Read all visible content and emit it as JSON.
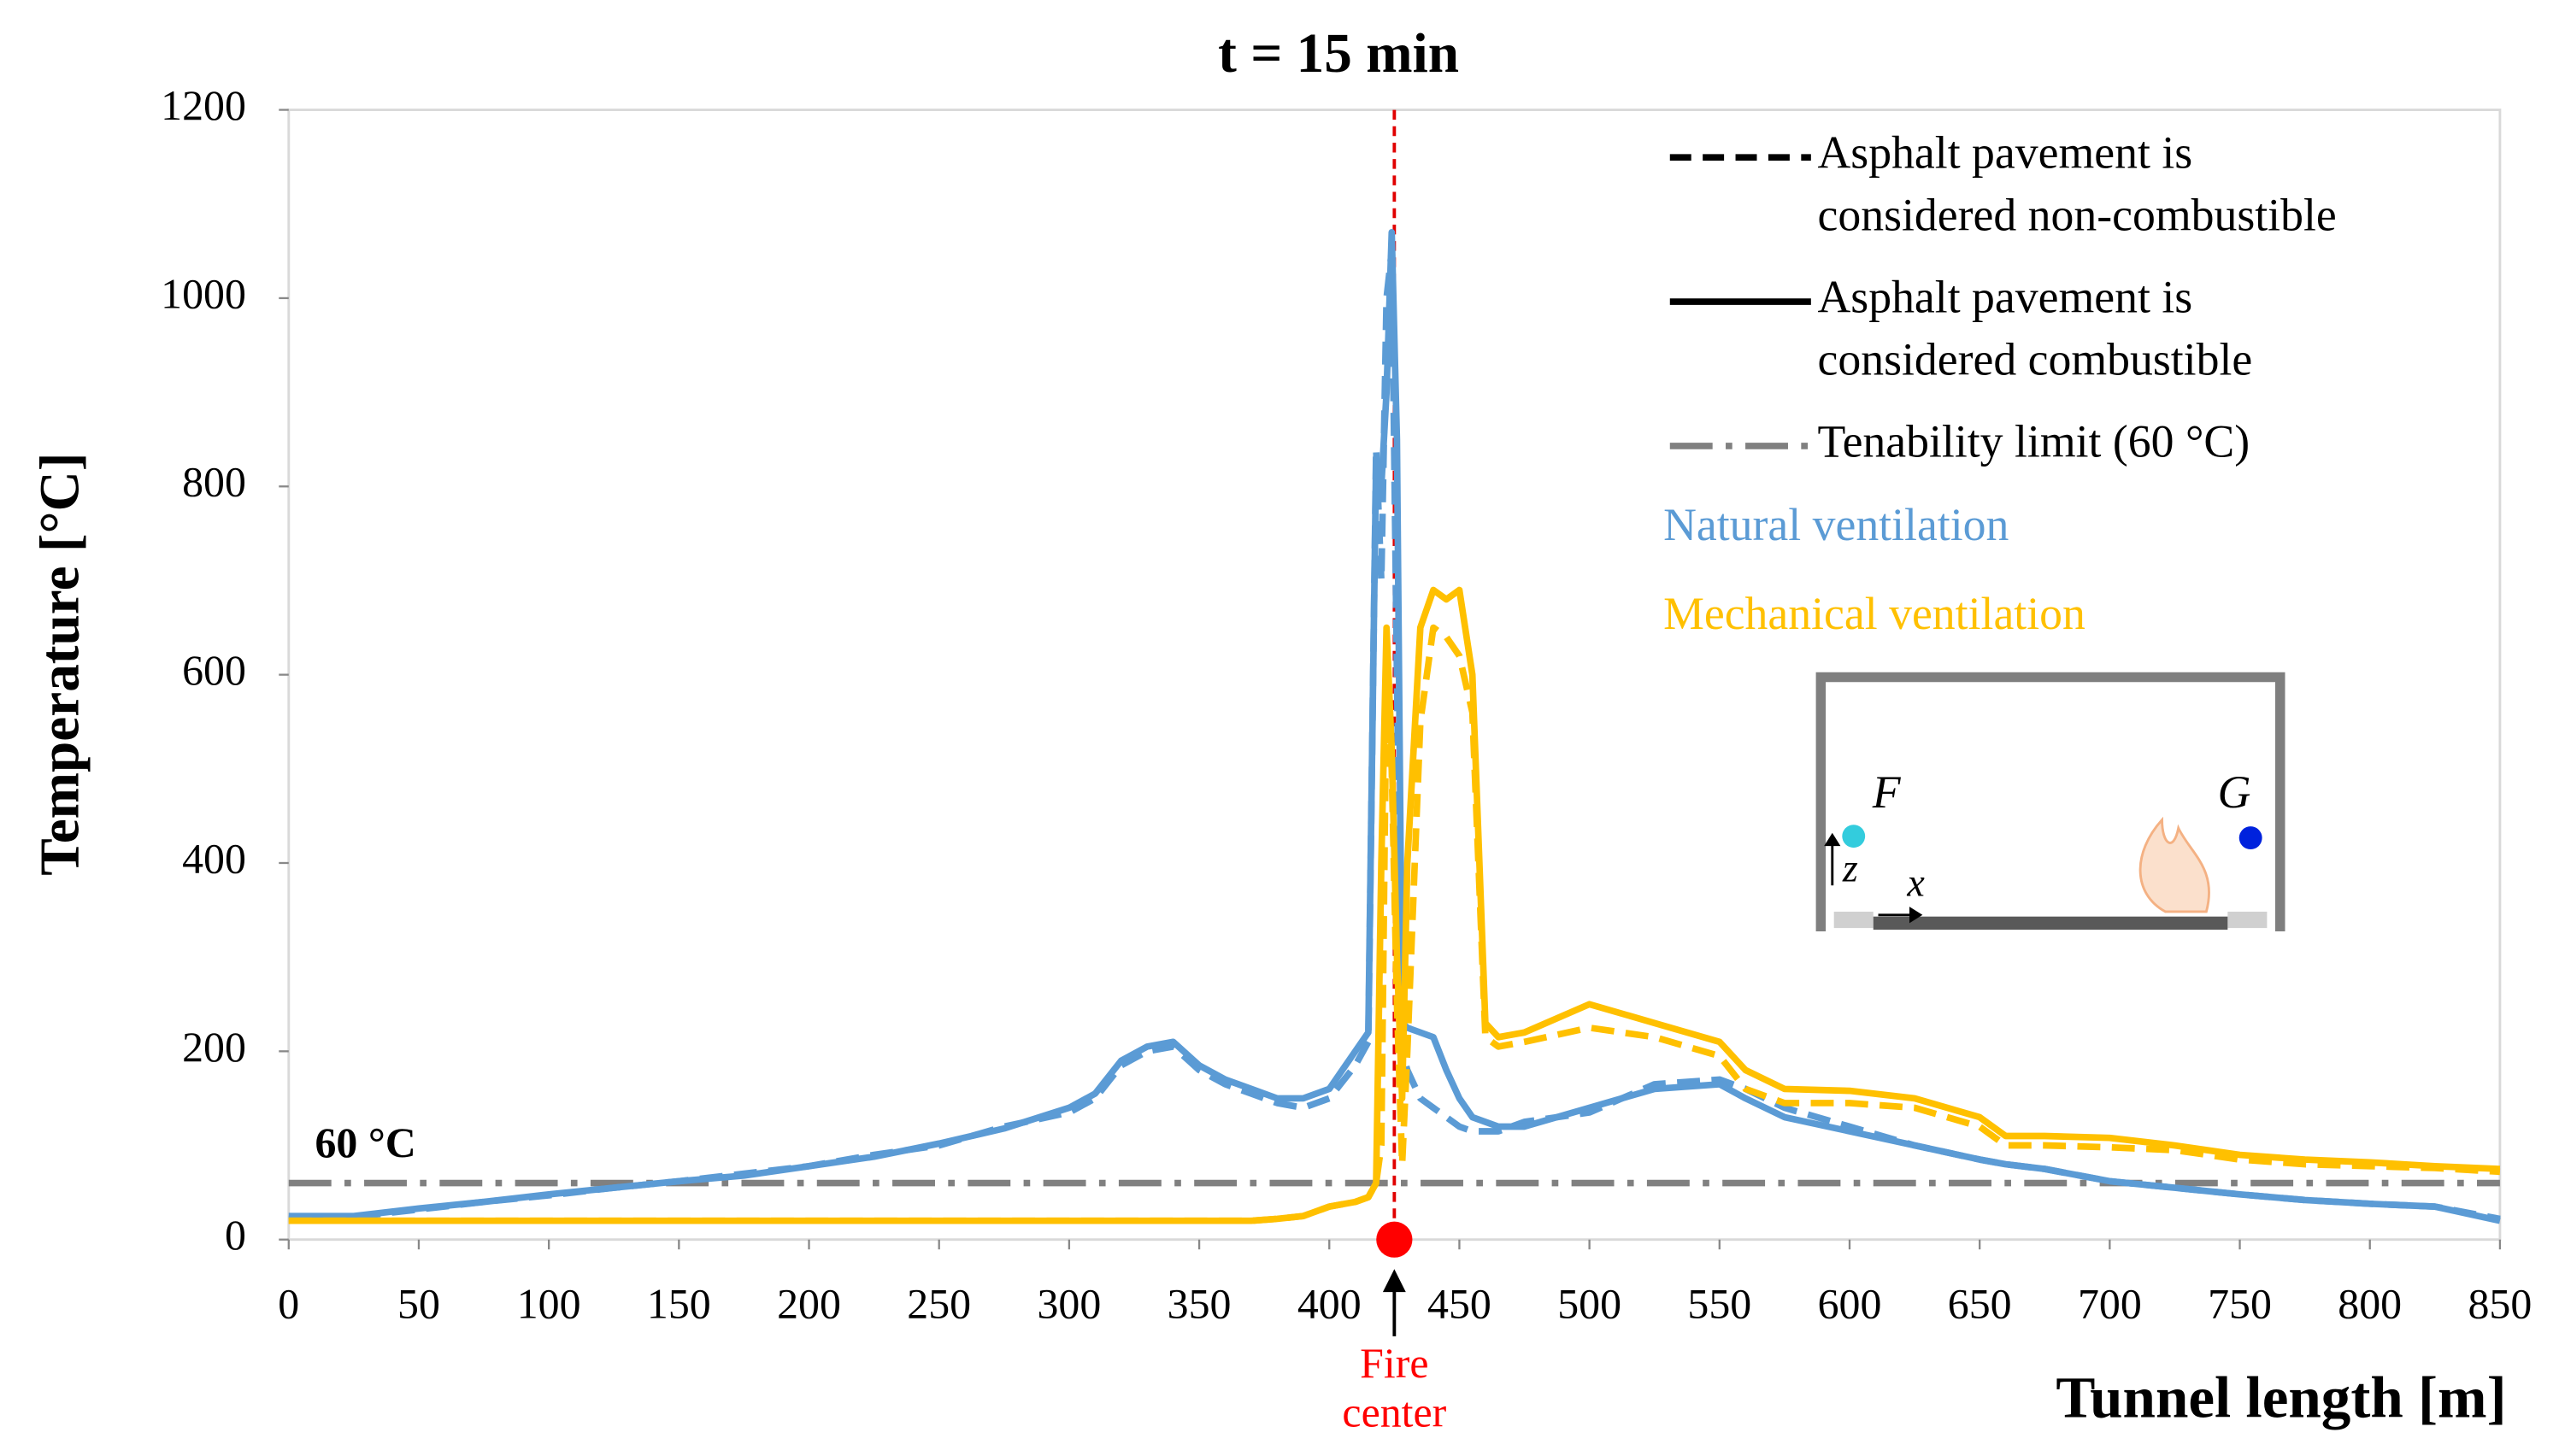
{
  "chart_data": {
    "type": "line",
    "title": "t = 15 min",
    "x_label": "Tunnel length [m]",
    "y_label": "Temperature [°C]",
    "xlim": [
      0,
      850
    ],
    "ylim": [
      0,
      1200
    ],
    "xticks": [
      0,
      50,
      100,
      150,
      200,
      250,
      300,
      350,
      400,
      450,
      500,
      550,
      600,
      650,
      700,
      750,
      800,
      850
    ],
    "yticks": [
      0,
      200,
      400,
      600,
      800,
      1000,
      1200
    ],
    "x": [
      0,
      25,
      50,
      75,
      100,
      125,
      150,
      175,
      200,
      225,
      250,
      275,
      300,
      310,
      320,
      330,
      340,
      350,
      360,
      370,
      380,
      390,
      400,
      410,
      415,
      418,
      420,
      422,
      424,
      426,
      428,
      430,
      435,
      440,
      445,
      450,
      455,
      460,
      465,
      475,
      500,
      525,
      550,
      560,
      575,
      600,
      625,
      650,
      660,
      675,
      700,
      725,
      750,
      775,
      800,
      825,
      850
    ],
    "series": [
      {
        "color": "#5b9bd5",
        "dashed": true,
        "values": [
          22,
          24,
          32,
          40,
          47,
          55,
          62,
          70,
          78,
          90,
          100,
          120,
          135,
          150,
          185,
          200,
          205,
          180,
          165,
          155,
          145,
          140,
          150,
          185,
          210,
          840,
          700,
          1000,
          1050,
          600,
          200,
          180,
          150,
          140,
          130,
          120,
          115,
          115,
          115,
          125,
          135,
          165,
          170,
          160,
          140,
          120,
          100,
          85,
          80,
          75,
          62,
          55,
          48,
          42,
          38,
          35,
          22
        ]
      },
      {
        "color": "#5b9bd5",
        "dashed": false,
        "values": [
          25,
          25,
          33,
          40,
          48,
          55,
          62,
          68,
          78,
          88,
          102,
          118,
          140,
          155,
          190,
          205,
          210,
          185,
          170,
          160,
          150,
          150,
          160,
          200,
          220,
          830,
          800,
          900,
          1070,
          850,
          230,
          225,
          220,
          215,
          180,
          150,
          130,
          125,
          120,
          120,
          140,
          160,
          165,
          150,
          130,
          115,
          100,
          85,
          80,
          75,
          62,
          55,
          48,
          42,
          38,
          35,
          20
        ]
      },
      {
        "color": "#ffc000",
        "dashed": true,
        "values": [
          20,
          20,
          20,
          20,
          20,
          20,
          20,
          20,
          20,
          20,
          20,
          20,
          20,
          20,
          20,
          20,
          20,
          20,
          20,
          20,
          22,
          25,
          35,
          40,
          45,
          60,
          100,
          600,
          500,
          250,
          80,
          200,
          550,
          650,
          640,
          620,
          560,
          215,
          205,
          210,
          225,
          215,
          195,
          160,
          145,
          145,
          140,
          120,
          100,
          100,
          98,
          95,
          85,
          80,
          78,
          76,
          72
        ]
      },
      {
        "color": "#ffc000",
        "dashed": false,
        "values": [
          20,
          20,
          20,
          20,
          20,
          20,
          20,
          20,
          20,
          20,
          20,
          20,
          20,
          20,
          20,
          20,
          20,
          20,
          20,
          20,
          22,
          25,
          35,
          40,
          45,
          60,
          400,
          650,
          520,
          300,
          150,
          400,
          650,
          690,
          680,
          690,
          600,
          230,
          215,
          220,
          250,
          230,
          210,
          180,
          160,
          158,
          150,
          130,
          110,
          110,
          108,
          100,
          90,
          85,
          82,
          78,
          75
        ]
      }
    ],
    "tenability": {
      "value": 60,
      "color": "#808080",
      "label": "60 °C"
    },
    "fire_center": {
      "x": 425,
      "label": [
        "Fire",
        "center"
      ]
    },
    "legend": [
      {
        "style": "dashed",
        "lines": [
          "Asphalt pavement is",
          "considered non-combustible"
        ]
      },
      {
        "style": "solid",
        "lines": [
          "Asphalt pavement is",
          "considered combustible"
        ]
      },
      {
        "style": "dashdot",
        "lines": [
          "Tenability limit (60 °C)"
        ]
      }
    ],
    "color_legend": [
      {
        "label": "Natural ventilation",
        "color": "#5b9bd5"
      },
      {
        "label": "Mechanical ventilation",
        "color": "#ffc000"
      }
    ],
    "inset": {
      "labels": [
        "F",
        "G",
        "z",
        "x"
      ]
    }
  }
}
